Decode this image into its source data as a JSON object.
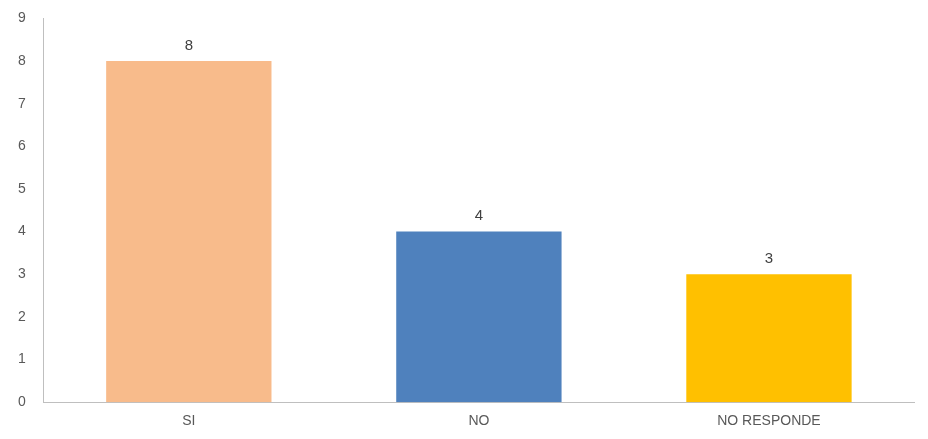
{
  "chart_data": {
    "type": "bar",
    "categories": [
      "SI",
      "NO",
      "NO RESPONDE"
    ],
    "values": [
      8,
      4,
      3
    ],
    "colors": [
      "#F8BB8B",
      "#4F81BD",
      "#FFC000"
    ],
    "ylim": [
      0,
      9
    ],
    "yticks": [
      0,
      1,
      2,
      3,
      4,
      5,
      6,
      7,
      8,
      9
    ],
    "grid": false,
    "data_labels": true
  }
}
